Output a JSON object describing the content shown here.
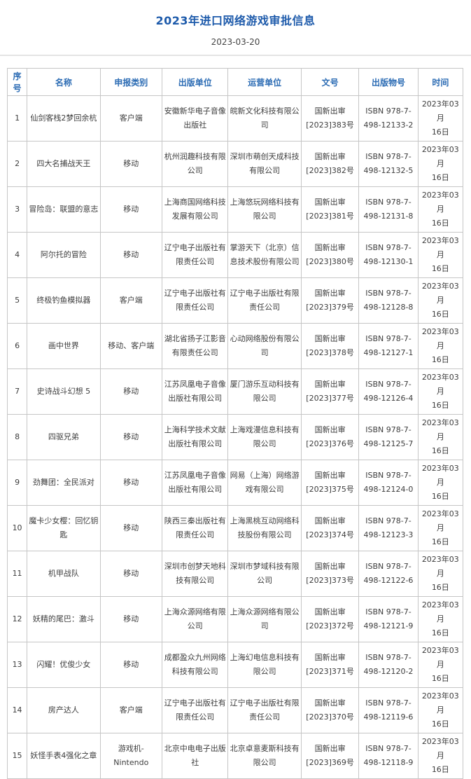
{
  "page": {
    "title": "2023年进口网络游戏审批信息",
    "date": "2023-03-20"
  },
  "colors": {
    "title_blue": "#1e5bab",
    "header_blue": "#2c6cb4",
    "border_gray": "#c6c6c6",
    "cell_text": "#3d3d3d"
  },
  "table": {
    "columns": [
      {
        "key": "no",
        "label": "序号"
      },
      {
        "key": "name",
        "label": "名称"
      },
      {
        "key": "category",
        "label": "申报类别"
      },
      {
        "key": "publisher",
        "label": "出版单位"
      },
      {
        "key": "operator",
        "label": "运营单位"
      },
      {
        "key": "doc_no",
        "label": "文号"
      },
      {
        "key": "pub_no",
        "label": "出版物号"
      },
      {
        "key": "date",
        "label": "时间"
      }
    ],
    "rows": [
      {
        "no": "1",
        "name": "仙剑客栈2梦回余杭",
        "category": "客户端",
        "publisher": "安徽新华电子音像出版社",
        "operator": "皖新文化科技有限公司",
        "doc_no": "国新出审\n[2023]383号",
        "pub_no": "ISBN 978-7-\n498-12133-2",
        "date": "2023年03月\n16日"
      },
      {
        "no": "2",
        "name": "四大名捕战天王",
        "category": "移动",
        "publisher": "杭州润趣科技有限公司",
        "operator": "深圳市萌创天成科技有限公司",
        "doc_no": "国新出审\n[2023]382号",
        "pub_no": "ISBN 978-7-\n498-12132-5",
        "date": "2023年03月\n16日"
      },
      {
        "no": "3",
        "name": "冒险岛：联盟的意志",
        "category": "移动",
        "publisher": "上海商国网络科技发展有限公司",
        "operator": "上海悠玩网络科技有限公司",
        "doc_no": "国新出审\n[2023]381号",
        "pub_no": "ISBN 978-7-\n498-12131-8",
        "date": "2023年03月\n16日"
      },
      {
        "no": "4",
        "name": "阿尔托的冒险",
        "category": "移动",
        "publisher": "辽宁电子出版社有限责任公司",
        "operator": "掌游天下（北京）信息技术股份有限公司",
        "doc_no": "国新出审\n[2023]380号",
        "pub_no": "ISBN 978-7-\n498-12130-1",
        "date": "2023年03月\n16日"
      },
      {
        "no": "5",
        "name": "终极钓鱼模拟器",
        "category": "客户端",
        "publisher": "辽宁电子出版社有限责任公司",
        "operator": "辽宁电子出版社有限责任公司",
        "doc_no": "国新出审\n[2023]379号",
        "pub_no": "ISBN 978-7-\n498-12128-8",
        "date": "2023年03月\n16日"
      },
      {
        "no": "6",
        "name": "画中世界",
        "category": "移动、客户端",
        "publisher": "湖北省扬子江影音有限责任公司",
        "operator": "心动网络股份有限公司",
        "doc_no": "国新出审\n[2023]378号",
        "pub_no": "ISBN 978-7-\n498-12127-1",
        "date": "2023年03月\n16日"
      },
      {
        "no": "7",
        "name": "史诗战斗幻想 5",
        "category": "移动",
        "publisher": "江苏凤凰电子音像出版社有限公司",
        "operator": "厦门游乐互动科技有限公司",
        "doc_no": "国新出审\n[2023]377号",
        "pub_no": "ISBN 978-7-\n498-12126-4",
        "date": "2023年03月\n16日"
      },
      {
        "no": "8",
        "name": "四驱兄弟",
        "category": "移动",
        "publisher": "上海科学技术文献出版社有限公司",
        "operator": "上海戏漫信息科技有限公司",
        "doc_no": "国新出审\n[2023]376号",
        "pub_no": "ISBN 978-7-\n498-12125-7",
        "date": "2023年03月\n16日"
      },
      {
        "no": "9",
        "name": "劲舞团：全民派对",
        "category": "移动",
        "publisher": "江苏凤凰电子音像出版社有限公司",
        "operator": "网易（上海）网络游戏有限公司",
        "doc_no": "国新出审\n[2023]375号",
        "pub_no": "ISBN 978-7-\n498-12124-0",
        "date": "2023年03月\n16日"
      },
      {
        "no": "10",
        "name": "魔卡少女樱：回忆钥匙",
        "category": "移动",
        "publisher": "陕西三秦出版社有限责任公司",
        "operator": "上海黑桃互动网络科技股份有限公司",
        "doc_no": "国新出审\n[2023]374号",
        "pub_no": "ISBN 978-7-\n498-12123-3",
        "date": "2023年03月\n16日"
      },
      {
        "no": "11",
        "name": "机甲战队",
        "category": "移动",
        "publisher": "深圳市创梦天地科技有限公司",
        "operator": "深圳市梦域科技有限公司",
        "doc_no": "国新出审\n[2023]373号",
        "pub_no": "ISBN 978-7-\n498-12122-6",
        "date": "2023年03月\n16日"
      },
      {
        "no": "12",
        "name": "妖精的尾巴：激斗",
        "category": "移动",
        "publisher": "上海众源网络有限公司",
        "operator": "上海众源网络有限公司",
        "doc_no": "国新出审\n[2023]372号",
        "pub_no": "ISBN 978-7-\n498-12121-9",
        "date": "2023年03月\n16日"
      },
      {
        "no": "13",
        "name": "闪耀！优俊少女",
        "category": "移动",
        "publisher": "成都盈众九州网络科技有限公司",
        "operator": "上海幻电信息科技有限公司",
        "doc_no": "国新出审\n[2023]371号",
        "pub_no": "ISBN 978-7-\n498-12120-2",
        "date": "2023年03月\n16日"
      },
      {
        "no": "14",
        "name": "房产达人",
        "category": "客户端",
        "publisher": "辽宁电子出版社有限责任公司",
        "operator": "辽宁电子出版社有限责任公司",
        "doc_no": "国新出审\n[2023]370号",
        "pub_no": "ISBN 978-7-\n498-12119-6",
        "date": "2023年03月\n16日"
      },
      {
        "no": "15",
        "name": "妖怪手表4强化之章",
        "category": "游戏机-\nNintendo",
        "publisher": "北京中电电子出版社",
        "operator": "北京卓意麦斯科技有限公司",
        "doc_no": "国新出审\n[2023]369号",
        "pub_no": "ISBN 978-7-\n498-12118-9",
        "date": "2023年03月\n16日"
      }
    ]
  }
}
